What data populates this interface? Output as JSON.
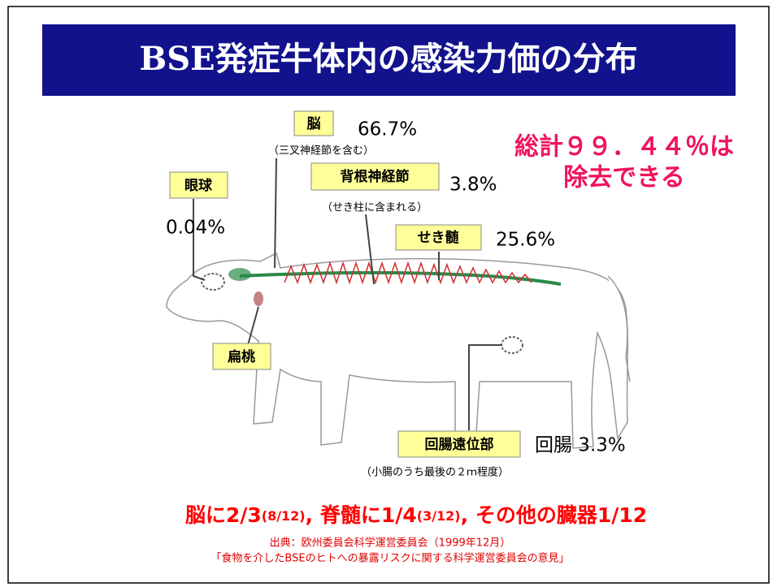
{
  "header": {
    "title": "BSE発症牛体内の感染力価の分布"
  },
  "labels": [
    {
      "name": "脳",
      "value": "66.7%",
      "note": "（三叉神経節を含む）"
    },
    {
      "name": "眼球",
      "value": "0.04%"
    },
    {
      "name": "背根神経節",
      "value": "3.8%",
      "note": "（せき柱に含まれる）"
    },
    {
      "name": "せき髄",
      "value": "25.6%"
    },
    {
      "name": "扁桃"
    },
    {
      "name": "回腸遠位部",
      "value": "回腸 3.3%",
      "note": "（小腸のうち最後の２ｍ程度）"
    }
  ],
  "total": [
    "総計９９．４４％は",
    "除去できる"
  ],
  "summary": [
    "脳に2/3",
    "(8/12)",
    ", 脊髄に1/4",
    "(3/12)",
    ", その他の臓器1/12"
  ],
  "source": [
    "出典：欧州委員会科学運営委員会（1999年12月）",
    "「食物を介したBSEのヒトへの暴露リスクに関する科学運営委員会の意見」"
  ]
}
